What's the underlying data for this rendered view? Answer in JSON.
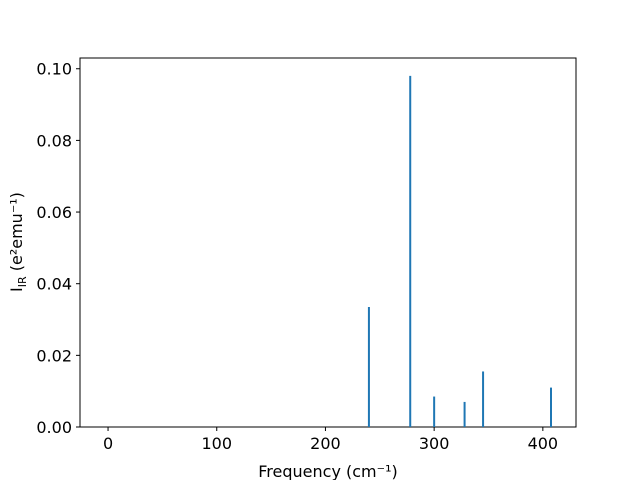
{
  "chart_data": {
    "type": "stem",
    "xlabel": "Frequency (cm⁻¹)",
    "ylabel": {
      "main": "I",
      "sub": "IR",
      "rest": " (e²emu⁻¹)"
    },
    "x": [
      240,
      278,
      300,
      328,
      345,
      407.5
    ],
    "values": [
      0.0335,
      0.098,
      0.0085,
      0.007,
      0.0155,
      0.011
    ],
    "color": "#1f77b4",
    "xlim": [
      -25.8,
      430.5
    ],
    "xticks": [
      0,
      100,
      200,
      300,
      400
    ],
    "ylim": [
      0,
      0.103
    ],
    "yticks": [
      {
        "value": 0,
        "label": "0.00"
      },
      {
        "value": 0.02,
        "label": "0.02"
      },
      {
        "value": 0.04,
        "label": "0.04"
      },
      {
        "value": 0.06,
        "label": "0.06"
      },
      {
        "value": 0.08,
        "label": "0.08"
      },
      {
        "value": 0.1,
        "label": "0.10"
      }
    ]
  }
}
